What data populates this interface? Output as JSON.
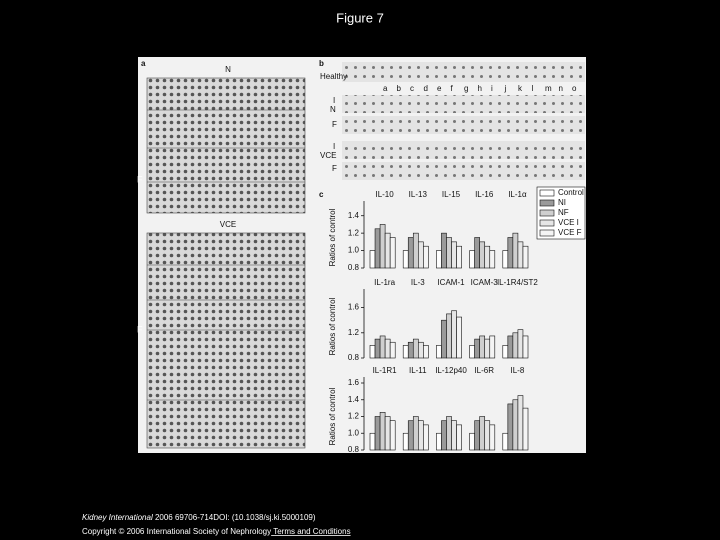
{
  "title": "Figure 7",
  "figure": {
    "panel_a": {
      "label": "a",
      "top_label": "N",
      "mid_label": "VCE",
      "side_labels": [
        "F",
        "F"
      ]
    },
    "panel_b": {
      "label": "b",
      "rows": [
        "Healthy",
        "N",
        "I",
        "F",
        "VCE",
        "I",
        "F"
      ],
      "letters": [
        "a",
        "b",
        "c",
        "d",
        "e",
        "f",
        "g",
        "h",
        "i",
        "j",
        "k",
        "l",
        "m",
        "n",
        "o"
      ]
    },
    "panel_c": {
      "label": "c",
      "y_label": "Ratios of control"
    }
  },
  "chart_data": [
    {
      "type": "bar",
      "categories": [
        "IL-10",
        "IL-13",
        "IL-15",
        "IL-16",
        "IL-1α"
      ],
      "ylim": [
        0.8,
        1.5
      ],
      "yticks": [
        {
          "value": 0.8,
          "label": "0.8"
        },
        {
          "value": 1.0,
          "label": "1.0"
        },
        {
          "value": 1.2,
          "label": "1.2"
        },
        {
          "value": 1.4,
          "label": "1.4"
        }
      ],
      "series": [
        {
          "name": "Control",
          "color": "#ffffff",
          "values": [
            1.0,
            1.0,
            1.0,
            1.0,
            1.0
          ]
        },
        {
          "name": "NI",
          "color": "#9a9a9a",
          "values": [
            1.25,
            1.15,
            1.2,
            1.15,
            1.15
          ]
        },
        {
          "name": "NF",
          "color": "#cfcfcf",
          "values": [
            1.3,
            1.2,
            1.15,
            1.1,
            1.2
          ]
        },
        {
          "name": "VCE I",
          "color": "#e6e6e6",
          "values": [
            1.2,
            1.1,
            1.1,
            1.05,
            1.1
          ]
        },
        {
          "name": "VCE F",
          "color": "#f4f4f4",
          "values": [
            1.15,
            1.05,
            1.05,
            1.0,
            1.05
          ]
        }
      ]
    },
    {
      "type": "bar",
      "categories": [
        "IL-1ra",
        "IL-3",
        "ICAM-1",
        "ICAM-3",
        "IL-1R4/ST2"
      ],
      "ylim": [
        0.8,
        1.8
      ],
      "yticks": [
        {
          "value": 0.8,
          "label": "0.8"
        },
        {
          "value": 1.2,
          "label": "1.2"
        },
        {
          "value": 1.6,
          "label": "1.6"
        }
      ],
      "series": [
        {
          "color": "#ffffff",
          "values": [
            1.0,
            1.0,
            1.0,
            1.0,
            1.0
          ]
        },
        {
          "color": "#9a9a9a",
          "values": [
            1.1,
            1.05,
            1.4,
            1.1,
            1.15
          ]
        },
        {
          "color": "#cfcfcf",
          "values": [
            1.15,
            1.1,
            1.5,
            1.15,
            1.2
          ]
        },
        {
          "color": "#e6e6e6",
          "values": [
            1.1,
            1.05,
            1.55,
            1.1,
            1.25
          ]
        },
        {
          "color": "#f4f4f4",
          "values": [
            1.05,
            1.0,
            1.45,
            1.15,
            1.15
          ]
        }
      ]
    },
    {
      "type": "bar",
      "categories": [
        "IL-1R1",
        "IL-11",
        "IL-12p40",
        "IL-6R",
        "IL-8"
      ],
      "ylim": [
        0.8,
        1.6
      ],
      "yticks": [
        {
          "value": 0.8,
          "label": "0.8"
        },
        {
          "value": 1.0,
          "label": "1.0"
        },
        {
          "value": 1.2,
          "label": "1.2"
        },
        {
          "value": 1.4,
          "label": "1.4"
        },
        {
          "value": 1.6,
          "label": "1.6"
        }
      ],
      "series": [
        {
          "color": "#ffffff",
          "values": [
            1.0,
            1.0,
            1.0,
            1.0,
            1.0
          ]
        },
        {
          "color": "#9a9a9a",
          "values": [
            1.2,
            1.15,
            1.15,
            1.15,
            1.35
          ]
        },
        {
          "color": "#cfcfcf",
          "values": [
            1.25,
            1.2,
            1.2,
            1.2,
            1.4
          ]
        },
        {
          "color": "#e6e6e6",
          "values": [
            1.2,
            1.15,
            1.15,
            1.15,
            1.45
          ]
        },
        {
          "color": "#f4f4f4",
          "values": [
            1.15,
            1.1,
            1.1,
            1.1,
            1.3
          ]
        }
      ]
    }
  ],
  "footer": {
    "journal": "Kidney International",
    "citation": " 2006 69706-714DOI: (10.1038/sj.ki.5000109)",
    "copyright": "Copyright © 2006 International Society of Nephrology",
    "link": " Terms and Conditions"
  }
}
